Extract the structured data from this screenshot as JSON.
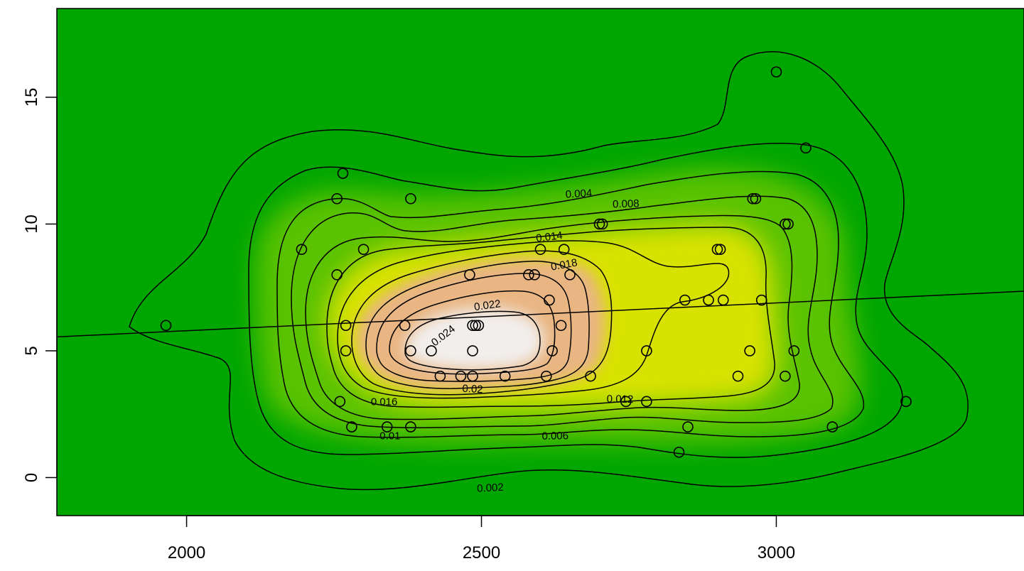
{
  "chart_data": {
    "type": "contour",
    "title": "",
    "xlabel": "",
    "ylabel": "",
    "xlim": [
      1780,
      3420
    ],
    "ylim": [
      -1.5,
      18.5
    ],
    "x_ticks": [
      2000,
      2500,
      3000
    ],
    "y_ticks": [
      0,
      5,
      10,
      15
    ],
    "x_tick_labels": [
      "2000",
      "2500",
      "3000"
    ],
    "y_tick_labels": [
      "0",
      "5",
      "10",
      "15"
    ],
    "colormap": [
      "#00a600",
      "#e6e600",
      "#eab38a",
      "#f2f2f2"
    ],
    "grid": false,
    "legend": "none",
    "contour_levels": [
      "0.002",
      "0.004",
      "0.006",
      "0.008",
      "0.01",
      "0.012",
      "0.014",
      "0.016",
      "0.018",
      "0.02",
      "0.022",
      "0.024"
    ],
    "density_peak": {
      "x": 2490,
      "y": 5.3
    },
    "regression_line": {
      "x": [
        1780,
        3420
      ],
      "y": [
        5.55,
        7.35
      ]
    },
    "points": [
      [
        1965,
        6
      ],
      [
        2195,
        9
      ],
      [
        2255,
        11
      ],
      [
        2265,
        12
      ],
      [
        2255,
        8
      ],
      [
        2270,
        6
      ],
      [
        2270,
        5
      ],
      [
        2260,
        3
      ],
      [
        2280,
        2
      ],
      [
        2300,
        9
      ],
      [
        2340,
        2
      ],
      [
        2370,
        6
      ],
      [
        2380,
        11
      ],
      [
        2380,
        5
      ],
      [
        2380,
        2
      ],
      [
        2415,
        5
      ],
      [
        2430,
        4
      ],
      [
        2465,
        4
      ],
      [
        2480,
        8
      ],
      [
        2485,
        6
      ],
      [
        2490,
        6
      ],
      [
        2495,
        6
      ],
      [
        2485,
        4
      ],
      [
        2485,
        5
      ],
      [
        2540,
        4
      ],
      [
        2580,
        8
      ],
      [
        2590,
        8
      ],
      [
        2600,
        9
      ],
      [
        2610,
        4
      ],
      [
        2615,
        7
      ],
      [
        2620,
        5
      ],
      [
        2635,
        6
      ],
      [
        2640,
        9
      ],
      [
        2650,
        8
      ],
      [
        2685,
        4
      ],
      [
        2700,
        10
      ],
      [
        2705,
        10
      ],
      [
        2745,
        3
      ],
      [
        2780,
        3
      ],
      [
        2780,
        5
      ],
      [
        2835,
        1
      ],
      [
        2845,
        7
      ],
      [
        2850,
        2
      ],
      [
        2885,
        7
      ],
      [
        2900,
        9
      ],
      [
        2905,
        9
      ],
      [
        2910,
        7
      ],
      [
        2935,
        4
      ],
      [
        2955,
        5
      ],
      [
        2960,
        11
      ],
      [
        2965,
        11
      ],
      [
        2975,
        7
      ],
      [
        3000,
        16
      ],
      [
        3015,
        10
      ],
      [
        3020,
        10
      ],
      [
        3015,
        4
      ],
      [
        3030,
        5
      ],
      [
        3050,
        13
      ],
      [
        3095,
        2
      ],
      [
        3220,
        3
      ]
    ],
    "contour_label_marks": [
      {
        "text": "0.002",
        "x": 2515,
        "y": -0.4,
        "angle": -3
      },
      {
        "text": "0.004",
        "x": 2665,
        "y": 11.2,
        "angle": -3
      },
      {
        "text": "0.006",
        "x": 2625,
        "y": 1.65,
        "angle": -1
      },
      {
        "text": "0.008",
        "x": 2745,
        "y": 10.8,
        "angle": -2
      },
      {
        "text": "0.01",
        "x": 2345,
        "y": 1.65,
        "angle": 0
      },
      {
        "text": "0.012",
        "x": 2735,
        "y": 3.1,
        "angle": 1
      },
      {
        "text": "0.014",
        "x": 2615,
        "y": 9.5,
        "angle": -7
      },
      {
        "text": "0.016",
        "x": 2335,
        "y": 3.0,
        "angle": 0
      },
      {
        "text": "0.018",
        "x": 2640,
        "y": 8.4,
        "angle": -10
      },
      {
        "text": "0.02",
        "x": 2485,
        "y": 3.5,
        "angle": 3
      },
      {
        "text": "0.022",
        "x": 2510,
        "y": 6.8,
        "angle": -8
      },
      {
        "text": "0.024",
        "x": 2435,
        "y": 5.6,
        "angle": -38
      }
    ]
  }
}
